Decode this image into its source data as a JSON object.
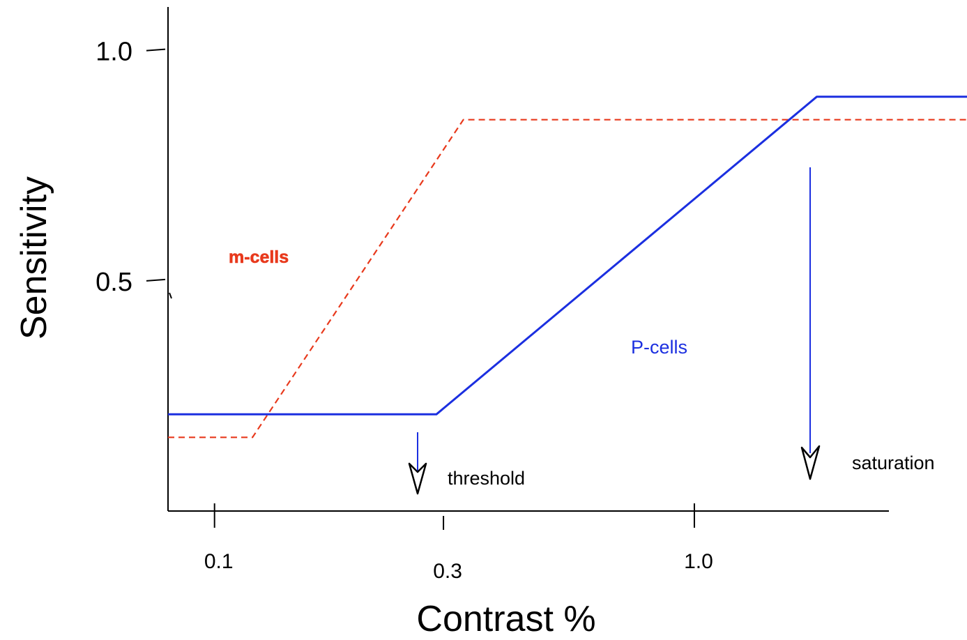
{
  "chart_data": {
    "type": "line",
    "xlabel": "Contrast %",
    "ylabel": "Sensitivity",
    "x_scale": "log",
    "xlim": [
      0.08,
      3.7
    ],
    "ylim": [
      0.0,
      1.11
    ],
    "x_ticks": [
      {
        "value": 0.1,
        "label": "0.1"
      },
      {
        "value": 0.3,
        "label": "0.3"
      },
      {
        "value": 1.0,
        "label": "1.0"
      }
    ],
    "y_ticks": [
      {
        "value": 0.5,
        "label": "0.5"
      },
      {
        "value": 1.0,
        "label": "1.0"
      }
    ],
    "grid": false,
    "series": [
      {
        "name": "m-cells",
        "color": "#e8391c",
        "style": "dashed",
        "points": [
          [
            0.08,
            0.16
          ],
          [
            0.12,
            0.16
          ],
          [
            0.33,
            0.85
          ],
          [
            3.7,
            0.85
          ]
        ]
      },
      {
        "name": "P-cells",
        "color": "#1b2fe0",
        "style": "solid",
        "points": [
          [
            0.08,
            0.21
          ],
          [
            0.29,
            0.21
          ],
          [
            1.8,
            0.9
          ],
          [
            3.7,
            0.9
          ]
        ]
      }
    ],
    "annotations": [
      {
        "text": "threshold",
        "x": 0.29,
        "arrow": true
      },
      {
        "text": "saturation",
        "x": 1.8,
        "arrow": true
      }
    ]
  }
}
